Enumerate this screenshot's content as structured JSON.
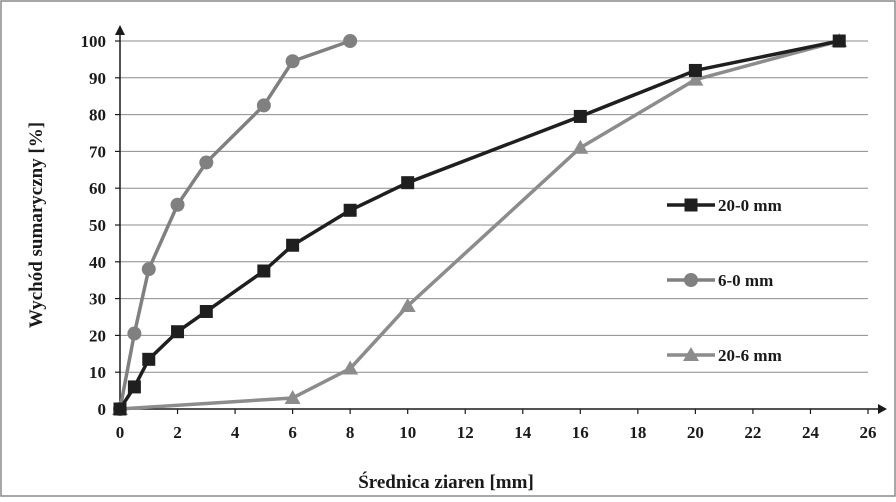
{
  "chart_data": {
    "type": "line",
    "title": "",
    "xlabel": "Średnica ziaren [mm]",
    "ylabel": "Wychód sumaryczny  [%]",
    "xlim": [
      0,
      26
    ],
    "ylim": [
      0,
      100
    ],
    "xticks": [
      0,
      2,
      4,
      6,
      8,
      10,
      12,
      14,
      16,
      18,
      20,
      22,
      24,
      26
    ],
    "yticks": [
      0,
      10,
      20,
      30,
      40,
      50,
      60,
      70,
      80,
      90,
      100
    ],
    "grid": "horizontal",
    "legend_position": "right",
    "series": [
      {
        "name": "20-0 mm",
        "marker": "square",
        "color": "#1f1f1f",
        "x": [
          0,
          0.5,
          1,
          2,
          3,
          5,
          6,
          8,
          10,
          16,
          20,
          25
        ],
        "y": [
          0,
          6,
          13.5,
          21,
          26.5,
          37.5,
          44.5,
          54,
          61.5,
          79.5,
          92,
          100
        ]
      },
      {
        "name": "6-0 mm",
        "marker": "circle",
        "color": "#808080",
        "x": [
          0,
          0.5,
          1,
          2,
          3,
          5,
          6,
          8
        ],
        "y": [
          0,
          20.5,
          38,
          55.5,
          67,
          82.5,
          94.5,
          100
        ]
      },
      {
        "name": "20-6 mm",
        "marker": "triangle",
        "color": "#8c8c8c",
        "x": [
          0,
          6,
          8,
          10,
          16,
          20,
          25
        ],
        "y": [
          0,
          3,
          11,
          28,
          71,
          89.5,
          100
        ]
      }
    ]
  }
}
